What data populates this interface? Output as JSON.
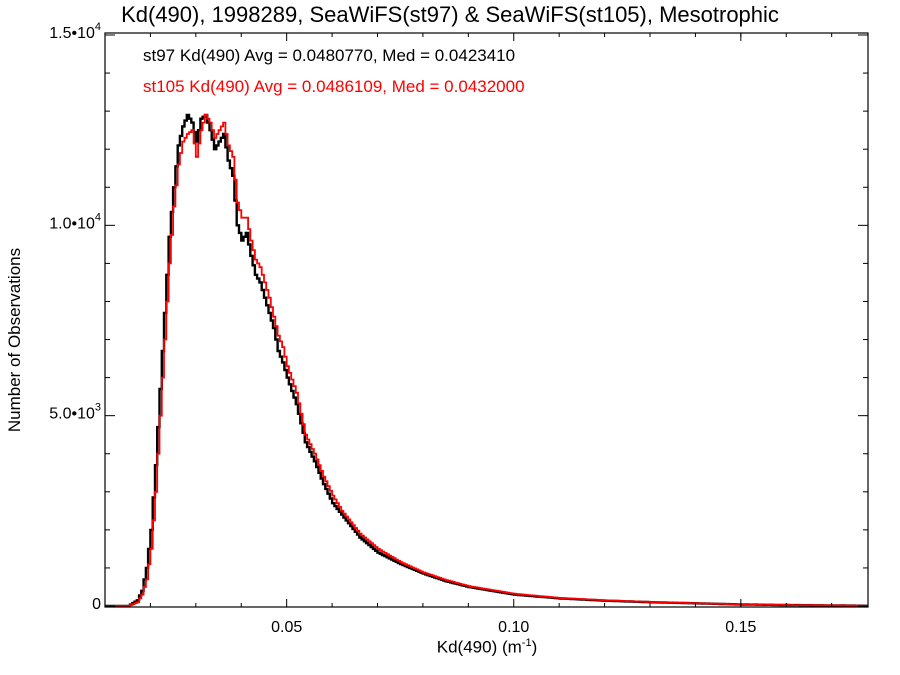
{
  "chart_data": {
    "type": "line",
    "title": "Kd(490), 1998289, SeaWiFS(st97) & SeaWiFS(st105), Mesotrophic",
    "xlabel": "Kd(490) (m",
    "xlabel_sup": "-1",
    "xlabel_close": ")",
    "ylabel": "Number of Observations",
    "xlim": [
      0.01,
      0.178
    ],
    "ylim": [
      0,
      15000
    ],
    "x_ticks": [
      {
        "value": 0.05,
        "label": "0.05"
      },
      {
        "value": 0.1,
        "label": "0.10"
      },
      {
        "value": 0.15,
        "label": "0.15"
      }
    ],
    "y_ticks": [
      {
        "value": 0,
        "mant": "0",
        "exp": ""
      },
      {
        "value": 5000,
        "mant": "5.0•10",
        "exp": "3"
      },
      {
        "value": 10000,
        "mant": "1.0•10",
        "exp": "4"
      },
      {
        "value": 15000,
        "mant": "1.5•10",
        "exp": "4"
      }
    ],
    "grid": false,
    "histogram_style": "step",
    "annotations": [
      {
        "text": "st97 Kd(490) Avg = 0.0480770, Med = 0.0423410",
        "color": "#000000"
      },
      {
        "text": "st105 Kd(490) Avg = 0.0486109, Med = 0.0432000",
        "color": "#ff0000"
      }
    ],
    "series": [
      {
        "color": "#000000",
        "x": [
          0.01,
          0.015,
          0.017,
          0.018,
          0.019,
          0.02,
          0.021,
          0.022,
          0.023,
          0.024,
          0.025,
          0.026,
          0.027,
          0.028,
          0.029,
          0.03,
          0.031,
          0.032,
          0.033,
          0.034,
          0.035,
          0.036,
          0.037,
          0.038,
          0.039,
          0.04,
          0.041,
          0.042,
          0.043,
          0.044,
          0.045,
          0.046,
          0.047,
          0.048,
          0.049,
          0.05,
          0.052,
          0.054,
          0.056,
          0.058,
          0.06,
          0.062,
          0.064,
          0.066,
          0.068,
          0.07,
          0.075,
          0.08,
          0.085,
          0.09,
          0.095,
          0.1,
          0.11,
          0.12,
          0.13,
          0.14,
          0.15,
          0.16,
          0.17,
          0.178
        ],
        "y": [
          0,
          0,
          150,
          400,
          1000,
          2000,
          3700,
          5700,
          7700,
          9700,
          11000,
          12100,
          12600,
          12900,
          12700,
          12200,
          12800,
          12900,
          12500,
          12000,
          12200,
          12400,
          11700,
          11300,
          10000,
          9600,
          9800,
          9200,
          8700,
          8500,
          8100,
          7700,
          7300,
          6700,
          6400,
          6000,
          5300,
          4300,
          3800,
          3200,
          2700,
          2400,
          2100,
          1800,
          1600,
          1400,
          1100,
          850,
          650,
          500,
          400,
          300,
          200,
          140,
          100,
          70,
          40,
          25,
          15,
          5
        ]
      },
      {
        "color": "#ff0000",
        "x": [
          0.01,
          0.015,
          0.017,
          0.018,
          0.019,
          0.02,
          0.021,
          0.022,
          0.023,
          0.024,
          0.025,
          0.026,
          0.027,
          0.028,
          0.029,
          0.03,
          0.031,
          0.032,
          0.033,
          0.034,
          0.035,
          0.036,
          0.037,
          0.038,
          0.039,
          0.04,
          0.041,
          0.042,
          0.043,
          0.044,
          0.045,
          0.046,
          0.047,
          0.048,
          0.049,
          0.05,
          0.052,
          0.054,
          0.056,
          0.058,
          0.06,
          0.062,
          0.064,
          0.066,
          0.068,
          0.07,
          0.075,
          0.08,
          0.085,
          0.09,
          0.095,
          0.1,
          0.11,
          0.12,
          0.13,
          0.14,
          0.15,
          0.16,
          0.17,
          0.178
        ],
        "y": [
          0,
          0,
          100,
          300,
          700,
          1500,
          3000,
          5000,
          7000,
          9000,
          10500,
          11600,
          12200,
          12400,
          12500,
          11800,
          12500,
          12900,
          12700,
          12300,
          12500,
          12700,
          12100,
          11800,
          10600,
          10200,
          10200,
          9600,
          9100,
          8900,
          8500,
          8100,
          7600,
          7100,
          6800,
          6300,
          5600,
          4500,
          4000,
          3400,
          2900,
          2500,
          2200,
          1900,
          1700,
          1500,
          1150,
          880,
          680,
          520,
          420,
          320,
          210,
          150,
          105,
          72,
          42,
          26,
          16,
          5
        ]
      }
    ]
  }
}
